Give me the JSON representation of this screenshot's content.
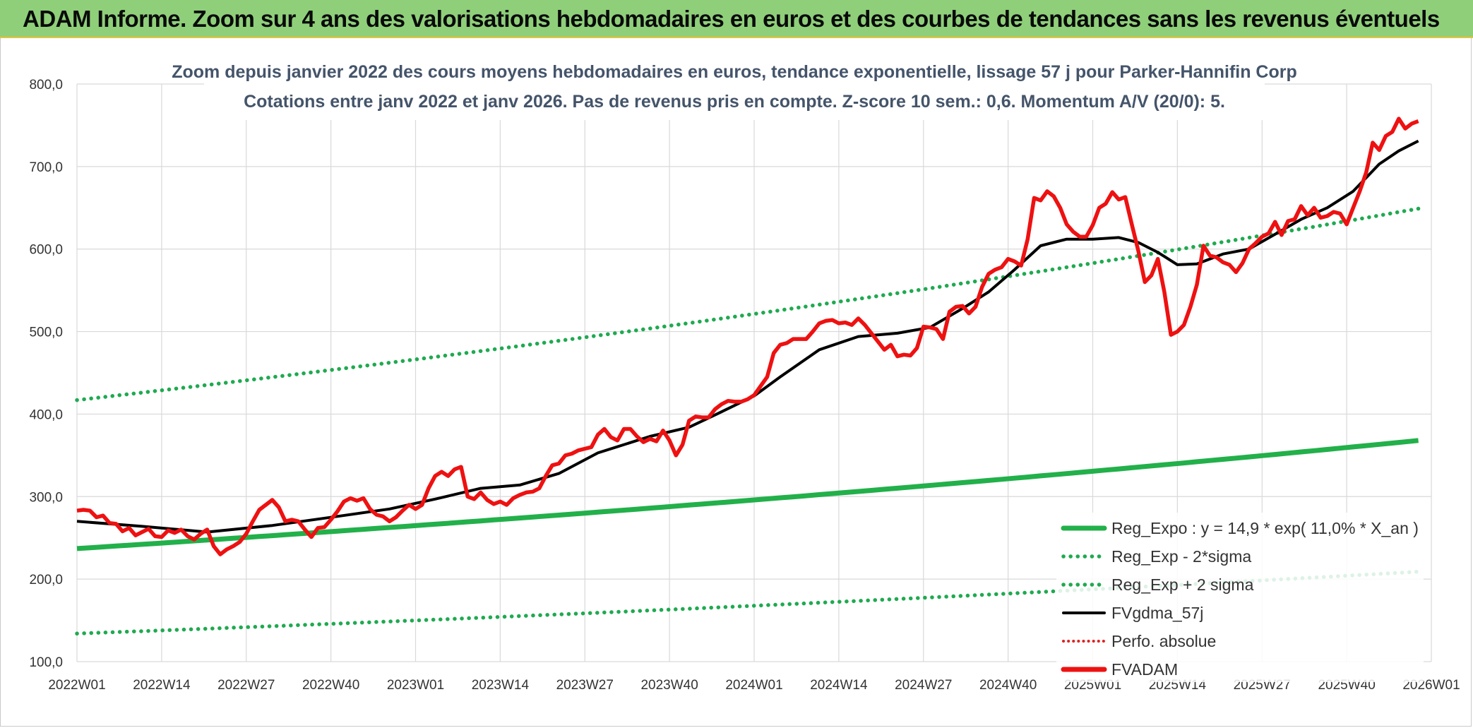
{
  "banner": {
    "title": "ADAM Informe. Zoom sur 4 ans des valorisations hebdomadaires en euros et des courbes de tendances sans les revenus éventuels"
  },
  "chart_data": {
    "type": "line",
    "title_line1": "Zoom depuis janvier 2022 des cours moyens hebdomadaires en euros, tendance exponentielle, lissage 57 j pour Parker-Hannifin Corp",
    "title_line2": "Cotations entre janv 2022 et janv 2026. Pas de revenus pris en compte. Z-score 10 sem.: 0,6. Momentum A/V (20/0): 5.",
    "ylim": [
      100,
      800
    ],
    "y_ticks": [
      "100,0",
      "200,0",
      "300,0",
      "400,0",
      "500,0",
      "600,0",
      "700,0",
      "800,0"
    ],
    "x_ticks": [
      "2022W01",
      "2022W14",
      "2022W27",
      "2022W40",
      "2023W01",
      "2023W14",
      "2023W27",
      "2023W40",
      "2024W01",
      "2024W14",
      "2024W27",
      "2024W40",
      "2025W01",
      "2025W14",
      "2025W27",
      "2025W40",
      "2026W01"
    ],
    "grid": true,
    "legend_position": "bottom-right",
    "colors": {
      "fvadam": "#ee1111",
      "fvgdma": "#000000",
      "reg_expo": "#22b04a",
      "reg_sigma": "#1faa50",
      "perfo": "#dd2222"
    },
    "legend": [
      "Reg_Expo : y = 14,9 * exp( 11,0% *  X_an )",
      "Reg_Exp - 2*sigma",
      "Reg_Exp + 2 sigma",
      "FVgdma_57j",
      "Perfo. absolue",
      "FVADAM"
    ],
    "reg_expo": {
      "start": 237,
      "end": 368
    },
    "reg_minus_2sigma": {
      "start": 134,
      "end": 209
    },
    "reg_plus_2sigma": {
      "start": 417,
      "end": 649
    },
    "fvadam_points": [
      [
        0,
        283
      ],
      [
        1,
        284
      ],
      [
        2,
        283
      ],
      [
        3,
        275
      ],
      [
        4,
        277
      ],
      [
        5,
        268
      ],
      [
        6,
        267
      ],
      [
        7,
        258
      ],
      [
        8,
        262
      ],
      [
        9,
        253
      ],
      [
        10,
        257
      ],
      [
        11,
        261
      ],
      [
        12,
        252
      ],
      [
        13,
        251
      ],
      [
        14,
        259
      ],
      [
        15,
        256
      ],
      [
        16,
        260
      ],
      [
        17,
        252
      ],
      [
        18,
        248
      ],
      [
        19,
        255
      ],
      [
        20,
        260
      ],
      [
        21,
        240
      ],
      [
        22,
        230
      ],
      [
        23,
        236
      ],
      [
        24,
        240
      ],
      [
        25,
        245
      ],
      [
        26,
        255
      ],
      [
        27,
        270
      ],
      [
        28,
        284
      ],
      [
        29,
        290
      ],
      [
        30,
        296
      ],
      [
        31,
        287
      ],
      [
        32,
        270
      ],
      [
        33,
        272
      ],
      [
        34,
        270
      ],
      [
        35,
        260
      ],
      [
        36,
        251
      ],
      [
        37,
        262
      ],
      [
        38,
        263
      ],
      [
        39,
        272
      ],
      [
        40,
        282
      ],
      [
        41,
        294
      ],
      [
        42,
        298
      ],
      [
        43,
        295
      ],
      [
        44,
        298
      ],
      [
        45,
        285
      ],
      [
        46,
        278
      ],
      [
        47,
        276
      ],
      [
        48,
        270
      ],
      [
        49,
        275
      ],
      [
        50,
        283
      ],
      [
        51,
        290
      ],
      [
        52,
        285
      ],
      [
        53,
        290
      ],
      [
        54,
        310
      ],
      [
        55,
        325
      ],
      [
        56,
        330
      ],
      [
        57,
        325
      ],
      [
        58,
        333
      ],
      [
        59,
        336
      ],
      [
        60,
        300
      ],
      [
        61,
        297
      ],
      [
        62,
        305
      ],
      [
        63,
        296
      ],
      [
        64,
        291
      ],
      [
        65,
        294
      ],
      [
        66,
        290
      ],
      [
        67,
        298
      ],
      [
        68,
        302
      ],
      [
        69,
        305
      ],
      [
        70,
        306
      ],
      [
        71,
        310
      ],
      [
        72,
        325
      ],
      [
        73,
        338
      ],
      [
        74,
        340
      ],
      [
        75,
        350
      ],
      [
        76,
        352
      ],
      [
        77,
        356
      ],
      [
        78,
        358
      ],
      [
        79,
        360
      ],
      [
        80,
        375
      ],
      [
        81,
        382
      ],
      [
        82,
        372
      ],
      [
        83,
        368
      ],
      [
        84,
        382
      ],
      [
        85,
        382
      ],
      [
        86,
        373
      ],
      [
        87,
        366
      ],
      [
        88,
        370
      ],
      [
        89,
        367
      ],
      [
        90,
        380
      ],
      [
        91,
        368
      ],
      [
        92,
        350
      ],
      [
        93,
        363
      ],
      [
        94,
        392
      ],
      [
        95,
        397
      ],
      [
        96,
        396
      ],
      [
        97,
        396
      ],
      [
        98,
        406
      ],
      [
        99,
        412
      ],
      [
        100,
        416
      ],
      [
        101,
        415
      ],
      [
        102,
        415
      ],
      [
        103,
        418
      ],
      [
        104,
        423
      ],
      [
        105,
        434
      ],
      [
        106,
        445
      ],
      [
        107,
        474
      ],
      [
        108,
        484
      ],
      [
        109,
        486
      ],
      [
        110,
        491
      ],
      [
        111,
        491
      ],
      [
        112,
        491
      ],
      [
        113,
        500
      ],
      [
        114,
        510
      ],
      [
        115,
        513
      ],
      [
        116,
        514
      ],
      [
        117,
        510
      ],
      [
        118,
        511
      ],
      [
        119,
        508
      ],
      [
        120,
        516
      ],
      [
        121,
        508
      ],
      [
        122,
        498
      ],
      [
        123,
        488
      ],
      [
        124,
        478
      ],
      [
        125,
        484
      ],
      [
        126,
        470
      ],
      [
        127,
        472
      ],
      [
        128,
        471
      ],
      [
        129,
        480
      ],
      [
        130,
        506
      ],
      [
        131,
        505
      ],
      [
        132,
        503
      ],
      [
        133,
        491
      ],
      [
        134,
        524
      ],
      [
        135,
        530
      ],
      [
        136,
        531
      ],
      [
        137,
        522
      ],
      [
        138,
        530
      ],
      [
        139,
        554
      ],
      [
        140,
        570
      ],
      [
        141,
        575
      ],
      [
        142,
        578
      ],
      [
        143,
        588
      ],
      [
        144,
        585
      ],
      [
        145,
        580
      ],
      [
        146,
        612
      ],
      [
        147,
        662
      ],
      [
        148,
        659
      ],
      [
        149,
        670
      ],
      [
        150,
        664
      ],
      [
        151,
        650
      ],
      [
        152,
        630
      ],
      [
        153,
        621
      ],
      [
        154,
        615
      ],
      [
        155,
        615
      ],
      [
        156,
        629
      ],
      [
        157,
        650
      ],
      [
        158,
        655
      ],
      [
        159,
        669
      ],
      [
        160,
        660
      ],
      [
        161,
        663
      ],
      [
        162,
        630
      ],
      [
        163,
        598
      ],
      [
        164,
        560
      ],
      [
        165,
        568
      ],
      [
        166,
        588
      ],
      [
        167,
        548
      ],
      [
        168,
        496
      ],
      [
        169,
        500
      ],
      [
        170,
        508
      ],
      [
        171,
        530
      ],
      [
        172,
        557
      ],
      [
        173,
        604
      ],
      [
        174,
        592
      ],
      [
        175,
        590
      ],
      [
        176,
        584
      ],
      [
        177,
        581
      ],
      [
        178,
        572
      ],
      [
        179,
        583
      ],
      [
        180,
        600
      ],
      [
        181,
        607
      ],
      [
        182,
        615
      ],
      [
        183,
        619
      ],
      [
        184,
        633
      ],
      [
        185,
        617
      ],
      [
        186,
        634
      ],
      [
        187,
        636
      ],
      [
        188,
        652
      ],
      [
        189,
        641
      ],
      [
        190,
        650
      ],
      [
        191,
        638
      ],
      [
        192,
        640
      ],
      [
        193,
        645
      ],
      [
        194,
        643
      ],
      [
        195,
        630
      ],
      [
        196,
        650
      ],
      [
        197,
        670
      ],
      [
        198,
        693
      ],
      [
        199,
        729
      ],
      [
        200,
        720
      ],
      [
        201,
        737
      ],
      [
        202,
        742
      ],
      [
        203,
        758
      ],
      [
        204,
        746
      ],
      [
        205,
        752
      ],
      [
        206,
        755
      ]
    ],
    "fvgdma_points": [
      [
        0,
        270
      ],
      [
        10,
        264
      ],
      [
        20,
        257
      ],
      [
        30,
        265
      ],
      [
        40,
        276
      ],
      [
        48,
        285
      ],
      [
        55,
        297
      ],
      [
        62,
        310
      ],
      [
        68,
        314
      ],
      [
        74,
        328
      ],
      [
        80,
        353
      ],
      [
        88,
        373
      ],
      [
        94,
        384
      ],
      [
        98,
        399
      ],
      [
        104,
        422
      ],
      [
        108,
        445
      ],
      [
        114,
        478
      ],
      [
        120,
        494
      ],
      [
        126,
        498
      ],
      [
        131,
        505
      ],
      [
        136,
        528
      ],
      [
        140,
        548
      ],
      [
        144,
        575
      ],
      [
        148,
        604
      ],
      [
        152,
        612
      ],
      [
        156,
        612
      ],
      [
        160,
        614
      ],
      [
        163,
        608
      ],
      [
        166,
        596
      ],
      [
        169,
        581
      ],
      [
        172,
        582
      ],
      [
        176,
        594
      ],
      [
        180,
        600
      ],
      [
        184,
        618
      ],
      [
        188,
        636
      ],
      [
        192,
        650
      ],
      [
        196,
        670
      ],
      [
        200,
        703
      ],
      [
        203,
        719
      ],
      [
        206,
        731
      ]
    ]
  }
}
